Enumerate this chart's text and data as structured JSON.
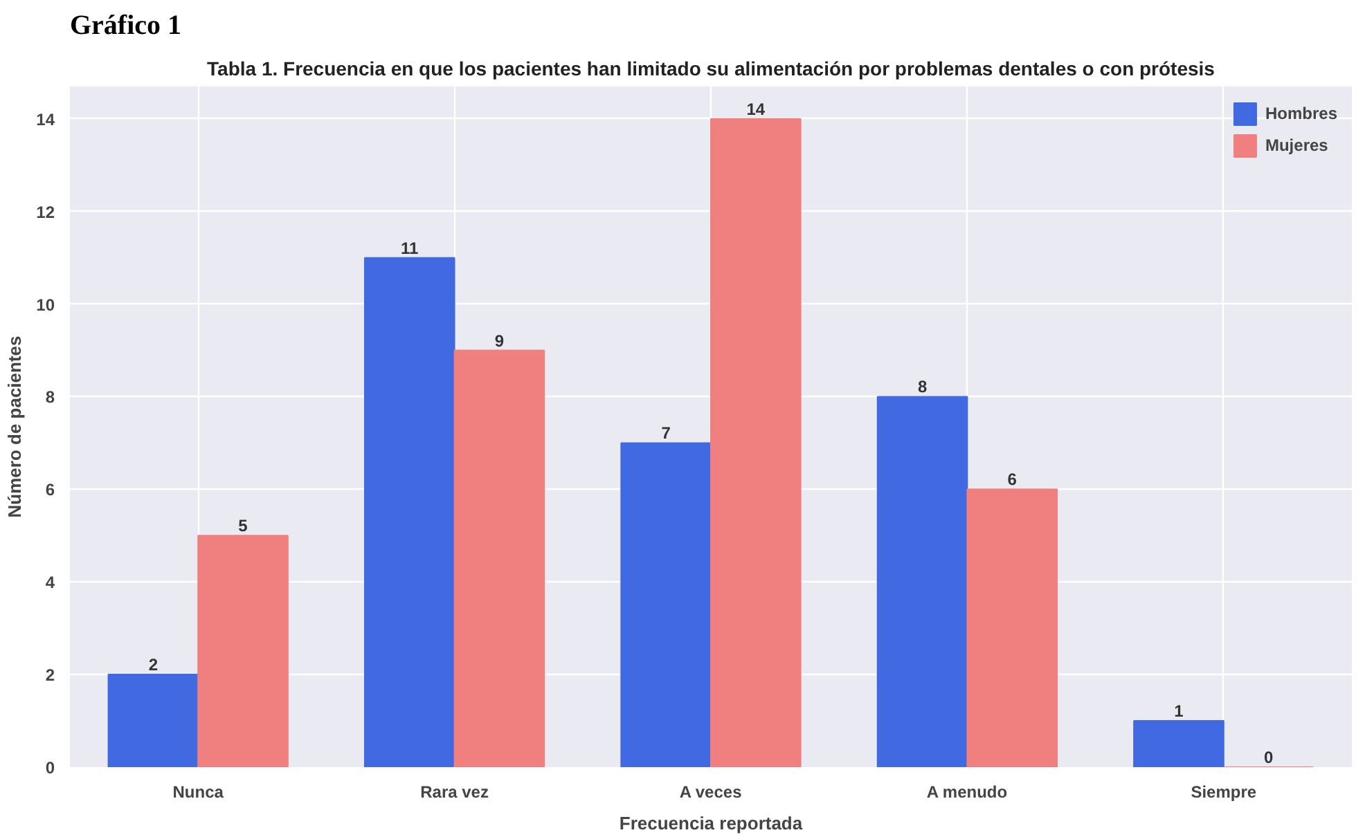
{
  "chart_data": {
    "type": "bar",
    "title": "Gráfico 1",
    "subtitle": "Tabla 1. Frecuencia en que los pacientes han limitado su alimentación por problemas dentales o con prótesis",
    "xlabel": "Frecuencia reportada",
    "ylabel": "Número de pacientes",
    "categories": [
      "Nunca",
      "Rara vez",
      "A veces",
      "A menudo",
      "Siempre"
    ],
    "series": [
      {
        "name": "Hombres",
        "color": "#4169e1",
        "values": [
          2,
          11,
          7,
          8,
          1
        ]
      },
      {
        "name": "Mujeres",
        "color": "#f08080",
        "values": [
          5,
          9,
          14,
          6,
          0
        ]
      }
    ],
    "ylim": [
      0,
      14.7
    ],
    "yticks": [
      0,
      2,
      4,
      6,
      8,
      10,
      12,
      14
    ],
    "grid": true,
    "legend": "top right",
    "data_labels": true
  }
}
